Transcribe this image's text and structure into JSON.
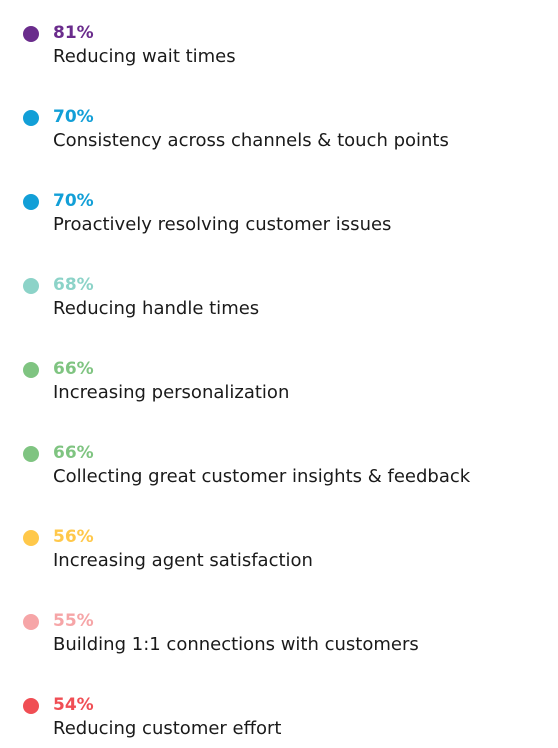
{
  "chart_data": {
    "type": "table",
    "items": [
      {
        "value": "81%",
        "label": "Reducing wait times",
        "color": "#6a2c8c"
      },
      {
        "value": "70%",
        "label": "Consistency across channels & touch points",
        "color": "#129fd7"
      },
      {
        "value": "70%",
        "label": "Proactively resolving customer issues",
        "color": "#129fd7"
      },
      {
        "value": "68%",
        "label": "Reducing handle times",
        "color": "#8cd3c8"
      },
      {
        "value": "66%",
        "label": "Increasing personalization",
        "color": "#7fc481"
      },
      {
        "value": "66%",
        "label": "Collecting great customer insights & feedback",
        "color": "#7fc481"
      },
      {
        "value": "56%",
        "label": "Increasing agent satisfaction",
        "color": "#ffc84a"
      },
      {
        "value": "55%",
        "label": "Building 1:1 connections with customers",
        "color": "#f6a5a7"
      },
      {
        "value": "54%",
        "label": "Reducing customer effort",
        "color": "#f04e54"
      }
    ]
  }
}
